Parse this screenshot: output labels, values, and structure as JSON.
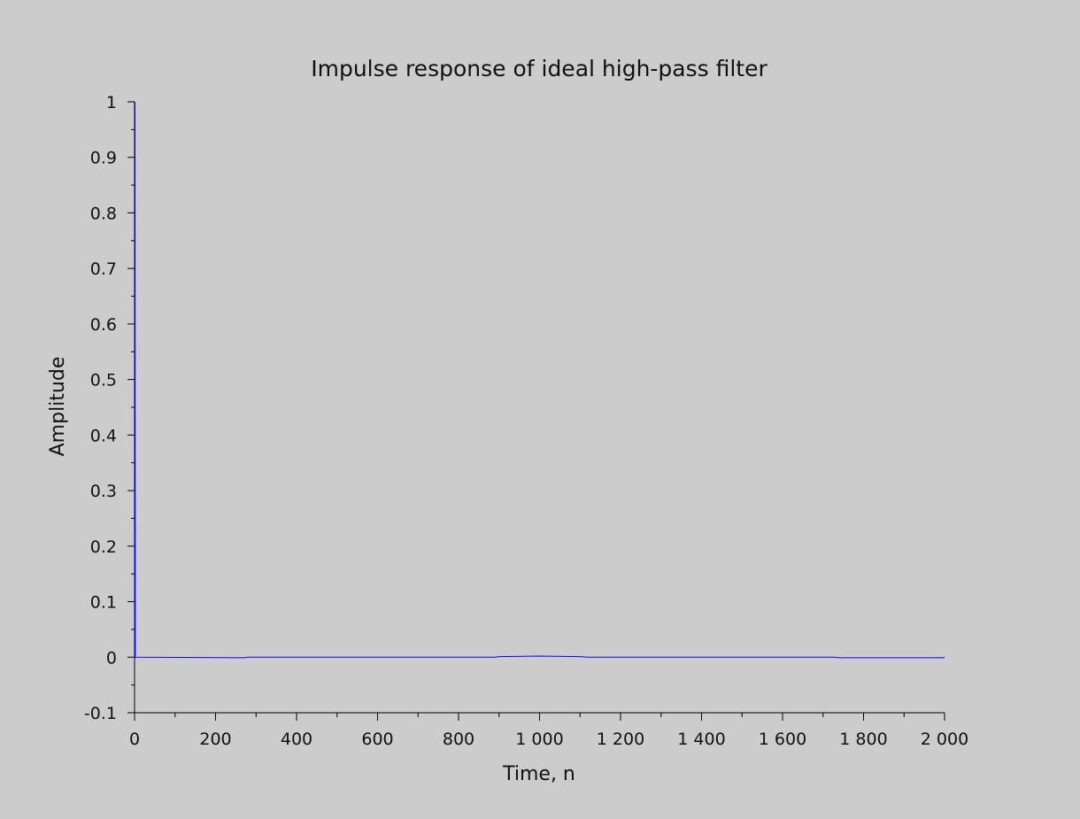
{
  "chart_data": {
    "type": "line",
    "title": "Impulse response of ideal high-pass filter",
    "xlabel": "Time, n",
    "ylabel": "Amplitude",
    "xlim": [
      0,
      2000
    ],
    "ylim": [
      -0.1,
      1
    ],
    "x_ticks": [
      0,
      200,
      400,
      600,
      800,
      1000,
      1200,
      1400,
      1600,
      1800,
      2000
    ],
    "x_tick_labels": [
      "0",
      "200",
      "400",
      "600",
      "800",
      "1 000",
      "1 200",
      "1 400",
      "1 600",
      "1 800",
      "2 000"
    ],
    "y_ticks": [
      -0.1,
      0,
      0.1,
      0.2,
      0.3,
      0.4,
      0.5,
      0.6,
      0.7,
      0.8,
      0.9,
      1
    ],
    "y_tick_labels": [
      "-0.1",
      "0",
      "0.1",
      "0.2",
      "0.3",
      "0.4",
      "0.5",
      "0.6",
      "0.7",
      "0.8",
      "0.9",
      "1"
    ],
    "grid": false,
    "series": [
      {
        "color": "#0000ff",
        "x": [
          0,
          1,
          2,
          270,
          280,
          890,
          900,
          1000,
          1100,
          1120,
          1730,
          1740,
          1998,
          1999,
          2000
        ],
        "y": [
          0.0,
          1.0,
          0.0,
          -0.001,
          0.0,
          0.0,
          0.001,
          0.002,
          0.001,
          0.0,
          0.0,
          -0.001,
          -0.001,
          0.0,
          0.0
        ]
      }
    ]
  }
}
